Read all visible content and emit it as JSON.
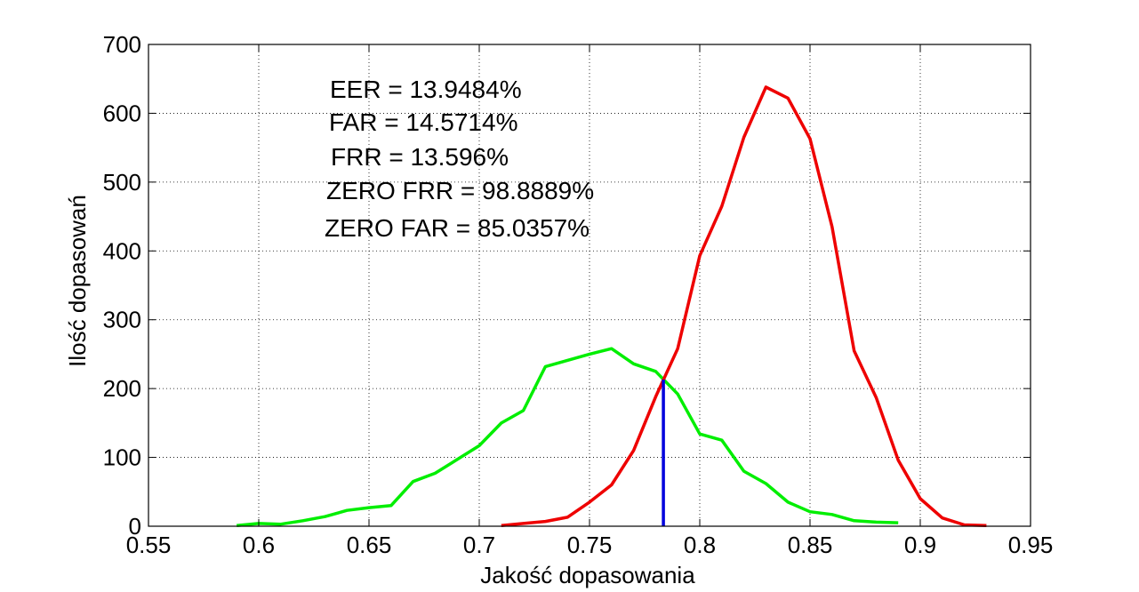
{
  "chart_data": {
    "type": "line",
    "title": "",
    "xlabel": "Jakość dopasowania",
    "ylabel": "Ilość dopasowań",
    "xlim": [
      0.55,
      0.95
    ],
    "ylim": [
      0,
      700
    ],
    "xticks": [
      0.55,
      0.6,
      0.65,
      0.7,
      0.75,
      0.8,
      0.85,
      0.9,
      0.95
    ],
    "yticks": [
      0,
      100,
      200,
      300,
      400,
      500,
      600,
      700
    ],
    "xtick_labels": [
      "0.55",
      "0.6",
      "0.65",
      "0.7",
      "0.75",
      "0.8",
      "0.85",
      "0.9",
      "0.95"
    ],
    "ytick_labels": [
      "0",
      "100",
      "200",
      "300",
      "400",
      "500",
      "600",
      "700"
    ],
    "grid": true,
    "annotations": [
      "EER = 13.9484%",
      "FAR = 14.5714%",
      "FRR = 13.596%",
      "ZERO FRR = 98.8889%",
      "ZERO FAR = 85.0357%"
    ],
    "series": [
      {
        "color": "#00ee00",
        "x": [
          0.59,
          0.6,
          0.61,
          0.62,
          0.63,
          0.64,
          0.65,
          0.66,
          0.67,
          0.68,
          0.69,
          0.7,
          0.71,
          0.72,
          0.73,
          0.74,
          0.75,
          0.76,
          0.77,
          0.78,
          0.79,
          0.8,
          0.81,
          0.82,
          0.83,
          0.84,
          0.85,
          0.86,
          0.87,
          0.88,
          0.89
        ],
        "y": [
          1,
          4,
          3,
          8,
          14,
          23,
          27,
          30,
          65,
          77,
          97,
          117,
          150,
          168,
          232,
          241,
          250,
          258,
          236,
          225,
          192,
          134,
          125,
          80,
          62,
          35,
          21,
          17,
          8,
          6,
          5
        ]
      },
      {
        "color": "#ee0000",
        "x": [
          0.71,
          0.72,
          0.73,
          0.74,
          0.75,
          0.76,
          0.77,
          0.78,
          0.79,
          0.8,
          0.81,
          0.82,
          0.83,
          0.84,
          0.85,
          0.86,
          0.87,
          0.88,
          0.89,
          0.9,
          0.91,
          0.92,
          0.93
        ],
        "y": [
          1,
          4,
          7,
          13,
          35,
          60,
          110,
          188,
          258,
          393,
          465,
          565,
          638,
          622,
          563,
          435,
          255,
          187,
          96,
          40,
          12,
          2,
          1
        ]
      },
      {
        "color": "#0000dd",
        "x": [
          0.7835,
          0.7835
        ],
        "y": [
          0,
          213
        ]
      }
    ]
  }
}
